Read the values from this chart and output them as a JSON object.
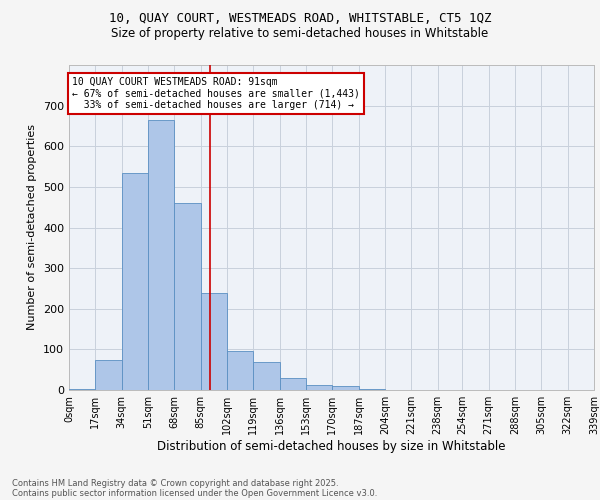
{
  "title1": "10, QUAY COURT, WESTMEADS ROAD, WHITSTABLE, CT5 1QZ",
  "title2": "Size of property relative to semi-detached houses in Whitstable",
  "xlabel": "Distribution of semi-detached houses by size in Whitstable",
  "ylabel": "Number of semi-detached properties",
  "bin_labels": [
    "0sqm",
    "17sqm",
    "34sqm",
    "51sqm",
    "68sqm",
    "85sqm",
    "102sqm",
    "119sqm",
    "136sqm",
    "153sqm",
    "170sqm",
    "187sqm",
    "204sqm",
    "221sqm",
    "238sqm",
    "254sqm",
    "271sqm",
    "288sqm",
    "305sqm",
    "322sqm",
    "339sqm"
  ],
  "bin_edges": [
    0,
    17,
    34,
    51,
    68,
    85,
    102,
    119,
    136,
    153,
    170,
    187,
    204,
    221,
    238,
    254,
    271,
    288,
    305,
    322,
    339
  ],
  "bar_heights": [
    2,
    75,
    535,
    665,
    460,
    240,
    95,
    68,
    30,
    12,
    10,
    2,
    0,
    0,
    0,
    0,
    0,
    0,
    0,
    0
  ],
  "bar_color": "#aec6e8",
  "bar_edge_color": "#5a8fc2",
  "property_size": 91,
  "vline_color": "#cc0000",
  "annotation_line1": "10 QUAY COURT WESTMEADS ROAD: 91sqm",
  "annotation_line2": "← 67% of semi-detached houses are smaller (1,443)",
  "annotation_line3": "  33% of semi-detached houses are larger (714) →",
  "annotation_box_color": "#ffffff",
  "annotation_box_edge_color": "#cc0000",
  "grid_color": "#c8d0dc",
  "background_color": "#eef2f8",
  "fig_background": "#f5f5f5",
  "ylim": [
    0,
    800
  ],
  "yticks": [
    0,
    100,
    200,
    300,
    400,
    500,
    600,
    700,
    800
  ],
  "footer1": "Contains HM Land Registry data © Crown copyright and database right 2025.",
  "footer2": "Contains public sector information licensed under the Open Government Licence v3.0."
}
